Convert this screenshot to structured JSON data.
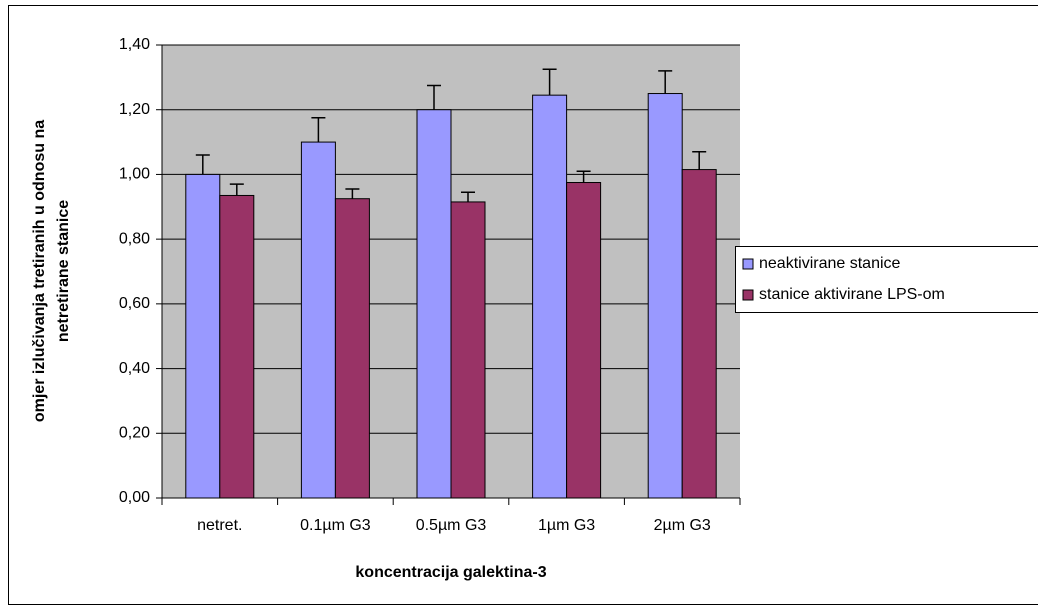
{
  "chart_data": {
    "type": "bar",
    "xlabel": "koncentracija galektina-3",
    "ylabel": [
      "omjer izlučivanja tretiranih u odnosu na",
      "netretirane stanice"
    ],
    "categories": [
      "netret.",
      "0.1µm G3",
      "0.5µm G3",
      "1µm G3",
      "2µm G3"
    ],
    "series": [
      {
        "name": "neaktivirane stanice",
        "color": "#9999ff",
        "values": [
          1.0,
          1.1,
          1.2,
          1.245,
          1.25
        ],
        "errors": [
          0.06,
          0.075,
          0.075,
          0.08,
          0.07
        ]
      },
      {
        "name": "stanice aktivirane LPS-om",
        "color": "#993366",
        "values": [
          0.935,
          0.925,
          0.915,
          0.975,
          1.015
        ],
        "errors": [
          0.035,
          0.03,
          0.03,
          0.035,
          0.055
        ]
      }
    ],
    "ylim": [
      0,
      1.4
    ],
    "yticks": [
      {
        "value": 0,
        "label": "0,00"
      },
      {
        "value": 0.2,
        "label": "0,20"
      },
      {
        "value": 0.4,
        "label": "0,40"
      },
      {
        "value": 0.6,
        "label": "0,60"
      },
      {
        "value": 0.8,
        "label": "0,80"
      },
      {
        "value": 1.0,
        "label": "1,00"
      },
      {
        "value": 1.2,
        "label": "1,20"
      },
      {
        "value": 1.4,
        "label": "1,40"
      }
    ],
    "grid": true,
    "legend": "right",
    "plot_background": "#c0c0c0"
  }
}
